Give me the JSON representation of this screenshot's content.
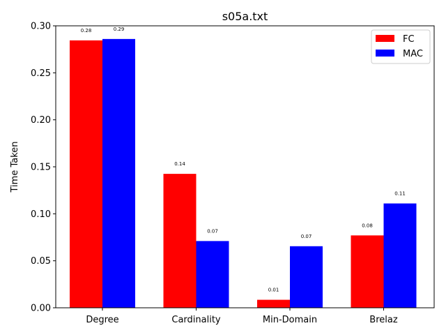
{
  "chart_data": {
    "type": "bar",
    "title": "s05a.txt",
    "xlabel": "",
    "ylabel": "Time Taken",
    "categories": [
      "Degree",
      "Cardinality",
      "Min-Domain",
      "Brelaz"
    ],
    "series": [
      {
        "name": "FC",
        "color": "#ff0000",
        "values": [
          0.2845,
          0.1425,
          0.0085,
          0.077
        ],
        "labels": [
          "0.28",
          "0.14",
          "0.01",
          "0.08"
        ]
      },
      {
        "name": "MAC",
        "color": "#0000ff",
        "values": [
          0.286,
          0.071,
          0.0655,
          0.111
        ],
        "labels": [
          "0.29",
          "0.07",
          "0.07",
          "0.11"
        ]
      }
    ],
    "ylim": [
      0,
      0.3
    ],
    "yticks": [
      0.0,
      0.05,
      0.1,
      0.15,
      0.2,
      0.25,
      0.3
    ],
    "ytick_labels": [
      "0.00",
      "0.05",
      "0.10",
      "0.15",
      "0.20",
      "0.25",
      "0.30"
    ],
    "grid": false,
    "legend_position": "top-right"
  }
}
